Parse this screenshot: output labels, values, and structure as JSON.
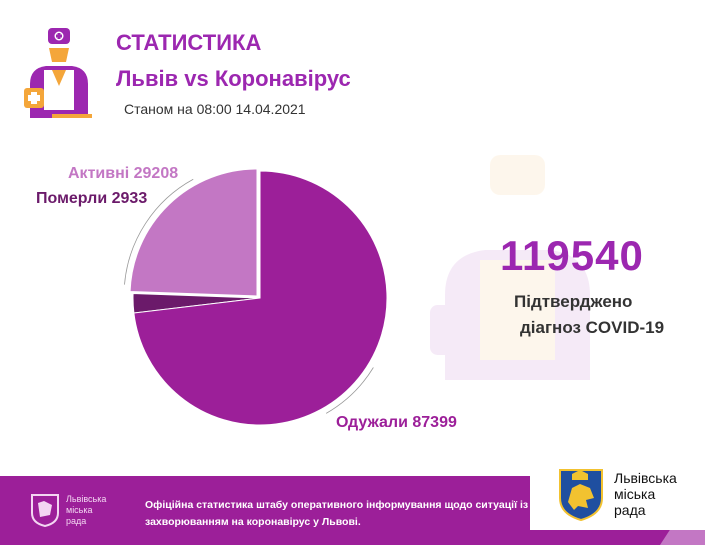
{
  "header": {
    "title": "СТАТИСТИКА",
    "subtitle": "Львів vs Коронавірус",
    "date": "Станом на 08:00 14.04.2021"
  },
  "summary": {
    "total": "119540",
    "caption_line1": "Підтверджено",
    "caption_line2": "діагноз COVID-19"
  },
  "footer": {
    "text": "Офіційна статистика штабу оперативного інформування щодо ситуації із захворюванням на коронавірус у Львові.",
    "logo_small_line1": "Львівська",
    "logo_small_line2": "міська",
    "logo_small_line3": "рада",
    "logo_line1": "Львівська",
    "logo_line2": "міська",
    "logo_line3": "рада"
  },
  "colors": {
    "brand": "#9c27b0",
    "recovered": "#9c1f99",
    "died": "#6b1a6a",
    "active": "#c377c4",
    "footer": "#9c1f99"
  },
  "chart_data": {
    "type": "pie",
    "slices": [
      {
        "label": "Активні 29208",
        "name": "Активні",
        "value": 29208,
        "color": "#c377c4"
      },
      {
        "label": "Померли 2933",
        "name": "Померли",
        "value": 2933,
        "color": "#6b1a6a"
      },
      {
        "label": "Одужали 87399",
        "name": "Одужали",
        "value": 87399,
        "color": "#9c1f99"
      }
    ],
    "start": "12 o'clock, active slice exploded"
  }
}
